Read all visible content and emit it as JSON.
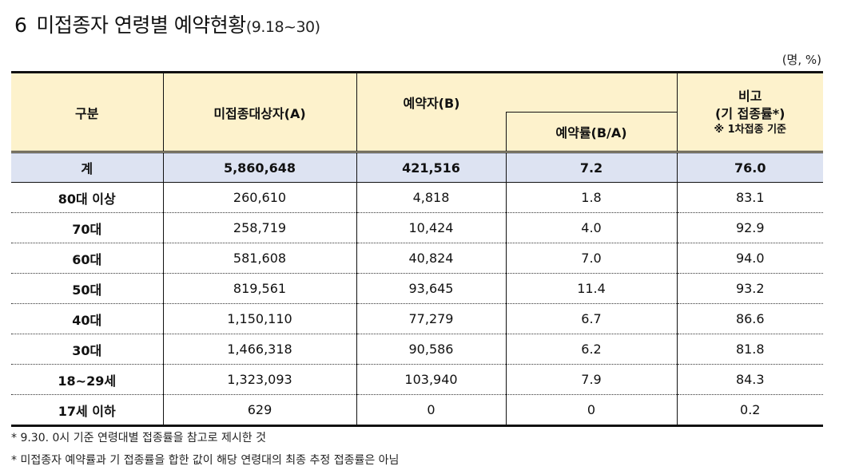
{
  "title": {
    "number": "6",
    "text": "미접종자 연령별 예약현황",
    "period": "(9.18~30)"
  },
  "unit": "(명, %)",
  "table": {
    "headers": {
      "category": "구분",
      "target": "미접종대상자(A)",
      "reserved": "예약자(B)",
      "rate": "예약률(B/A)",
      "memo_line1": "비고",
      "memo_line2": "(기 접종률*)",
      "memo_note": "※ 1차접종 기준"
    },
    "total": {
      "label": "계",
      "target": "5,860,648",
      "reserved": "421,516",
      "rate": "7.2",
      "memo": "76.0"
    },
    "rows": [
      {
        "label": "80대 이상",
        "target": "260,610",
        "reserved": "4,818",
        "rate": "1.8",
        "memo": "83.1"
      },
      {
        "label": "70대",
        "target": "258,719",
        "reserved": "10,424",
        "rate": "4.0",
        "memo": "92.9"
      },
      {
        "label": "60대",
        "target": "581,608",
        "reserved": "40,824",
        "rate": "7.0",
        "memo": "94.0"
      },
      {
        "label": "50대",
        "target": "819,561",
        "reserved": "93,645",
        "rate": "11.4",
        "memo": "93.2"
      },
      {
        "label": "40대",
        "target": "1,150,110",
        "reserved": "77,279",
        "rate": "6.7",
        "memo": "86.6"
      },
      {
        "label": "30대",
        "target": "1,466,318",
        "reserved": "90,586",
        "rate": "6.2",
        "memo": "81.8"
      },
      {
        "label": "18~29세",
        "target": "1,323,093",
        "reserved": "103,940",
        "rate": "7.9",
        "memo": "84.3"
      },
      {
        "label": "17세 이하",
        "target": "629",
        "reserved": "0",
        "rate": "0",
        "memo": "0.2"
      }
    ]
  },
  "notes": [
    "* 9.30. 0시 기준 연령대별 접종률을 참고로 제시한 것",
    "* 미접종자 예약률과 기 접종률을 합한 값이 해당 연령대의 최종 추정 접종률은 아님"
  ]
}
